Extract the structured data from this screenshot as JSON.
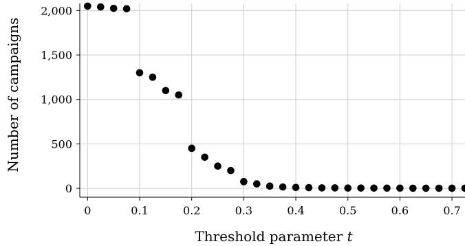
{
  "chart_data": {
    "type": "scatter",
    "title": "",
    "xlabel": "Threshold parameter",
    "xlabel_var": "t",
    "ylabel": "Number of campaigns",
    "xlim": [
      -0.015,
      0.725
    ],
    "ylim": [
      -100,
      2080
    ],
    "xticks": [
      0,
      0.1,
      0.2,
      0.3,
      0.4,
      0.5,
      0.6,
      0.7
    ],
    "xtick_labels": [
      "0",
      "0.1",
      "0.2",
      "0.3",
      "0.4",
      "0.5",
      "0.6",
      "0.7"
    ],
    "yticks": [
      0,
      500,
      1000,
      1500,
      2000
    ],
    "ytick_labels": [
      "0",
      "500",
      "1,000",
      "1,500",
      "2,000"
    ],
    "grid": true,
    "marker_color": "#000000",
    "grid_color": "#cccccc",
    "x": [
      0,
      0.025,
      0.05,
      0.075,
      0.1,
      0.125,
      0.15,
      0.175,
      0.2,
      0.225,
      0.25,
      0.275,
      0.3,
      0.325,
      0.35,
      0.375,
      0.4,
      0.425,
      0.45,
      0.475,
      0.5,
      0.525,
      0.55,
      0.575,
      0.6,
      0.625,
      0.65,
      0.675,
      0.7,
      0.725
    ],
    "y": [
      2050,
      2040,
      2025,
      2020,
      1300,
      1250,
      1100,
      1050,
      450,
      350,
      250,
      200,
      75,
      50,
      25,
      15,
      10,
      8,
      5,
      5,
      3,
      3,
      2,
      2,
      2,
      1,
      1,
      1,
      1,
      1
    ]
  }
}
